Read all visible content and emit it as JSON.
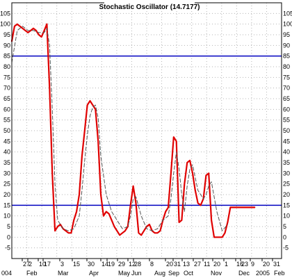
{
  "colors": {
    "background": "#ffffff",
    "frame": "#000000",
    "grid": "#b4b4b4",
    "fast_line": "#e00000",
    "slow_line": "#555555",
    "level_lines": "#0000c0"
  },
  "chart_data": {
    "type": "line",
    "title": "Stochastic Oscillator (14.7177)",
    "xlabel": "",
    "ylabel": "",
    "ylim": [
      -10,
      110
    ],
    "grid": true,
    "y_ticks": [
      -5,
      0,
      5,
      10,
      15,
      20,
      25,
      30,
      35,
      40,
      45,
      50,
      55,
      60,
      65,
      70,
      75,
      80,
      85,
      90,
      95,
      100,
      105
    ],
    "reference_lines": [
      15,
      85
    ],
    "x_axis_labels": {
      "days": [
        "27",
        "2",
        "10",
        "17",
        "3",
        "15",
        "30",
        "14",
        "19",
        "29",
        "12",
        "28",
        "8",
        "20",
        "31",
        "13",
        "27",
        "11",
        "20",
        "1",
        "16",
        "23",
        "9",
        "20",
        "31"
      ],
      "months": [
        "004",
        "Feb",
        "Mar",
        "Apr",
        "May",
        "Jun",
        "Aug",
        "Sep",
        "Oct",
        "Nov",
        "Dec",
        "2005",
        "Feb"
      ]
    },
    "x_range": [
      0,
      100
    ],
    "series": [
      {
        "style": "solid",
        "color": "#e00000",
        "x": [
          0,
          1,
          2,
          3,
          5,
          6,
          7,
          8,
          9,
          10,
          11,
          12,
          13,
          14,
          15,
          16,
          17,
          18,
          19,
          20,
          21,
          22,
          23,
          24,
          25,
          26,
          27,
          28,
          29,
          30,
          31,
          32,
          33,
          34,
          35,
          36,
          37,
          38,
          39,
          40,
          41,
          42,
          43,
          44,
          45,
          46,
          47,
          48,
          49,
          50,
          51,
          52,
          53,
          54,
          55,
          56,
          57,
          58,
          59,
          60,
          61,
          62,
          63,
          64,
          65,
          66,
          67,
          68,
          69,
          70,
          71,
          72,
          73,
          74,
          75,
          76,
          77,
          78,
          79,
          80,
          81,
          82,
          83,
          84,
          85,
          86,
          87,
          88,
          89,
          90
        ],
        "y": [
          92,
          99,
          100,
          99,
          97,
          96,
          97,
          98,
          97,
          95,
          94,
          97,
          100,
          70,
          30,
          3,
          5,
          6,
          4,
          3,
          2,
          2,
          8,
          12,
          20,
          38,
          50,
          62,
          64,
          62,
          60,
          45,
          20,
          10,
          12,
          11,
          8,
          5,
          3,
          1,
          2,
          3,
          5,
          15,
          24,
          16,
          2,
          1,
          3,
          5,
          6,
          3,
          2,
          2,
          3,
          8,
          12,
          14,
          30,
          47,
          45,
          7,
          8,
          25,
          35,
          36,
          30,
          22,
          16,
          15,
          18,
          29,
          30,
          8,
          0,
          0,
          0,
          0,
          2,
          7,
          14,
          14,
          14,
          14,
          14,
          14,
          14,
          14,
          14,
          14
        ]
      },
      {
        "style": "dashed",
        "color": "#555555",
        "x": [
          0,
          2,
          4,
          6,
          8,
          10,
          12,
          13,
          14,
          15,
          16,
          17,
          19,
          21,
          23,
          25,
          26,
          27,
          28,
          29,
          30,
          31,
          32,
          33,
          35,
          37,
          39,
          41,
          43,
          44,
          45,
          46,
          48,
          50,
          52,
          54,
          56,
          58,
          59,
          60,
          61,
          62,
          63,
          64,
          65,
          66,
          67,
          68,
          69,
          70,
          71,
          72,
          73,
          74,
          76,
          78,
          80
        ],
        "y": [
          82,
          97,
          99,
          97,
          97,
          96,
          96,
          98,
          90,
          60,
          25,
          8,
          4,
          3,
          4,
          10,
          22,
          36,
          48,
          57,
          61,
          62,
          56,
          38,
          20,
          12,
          8,
          4,
          5,
          10,
          18,
          19,
          10,
          4,
          3,
          4,
          8,
          10,
          18,
          30,
          40,
          32,
          20,
          12,
          24,
          32,
          34,
          28,
          22,
          20,
          18,
          20,
          24,
          26,
          12,
          3,
          6
        ]
      }
    ]
  }
}
